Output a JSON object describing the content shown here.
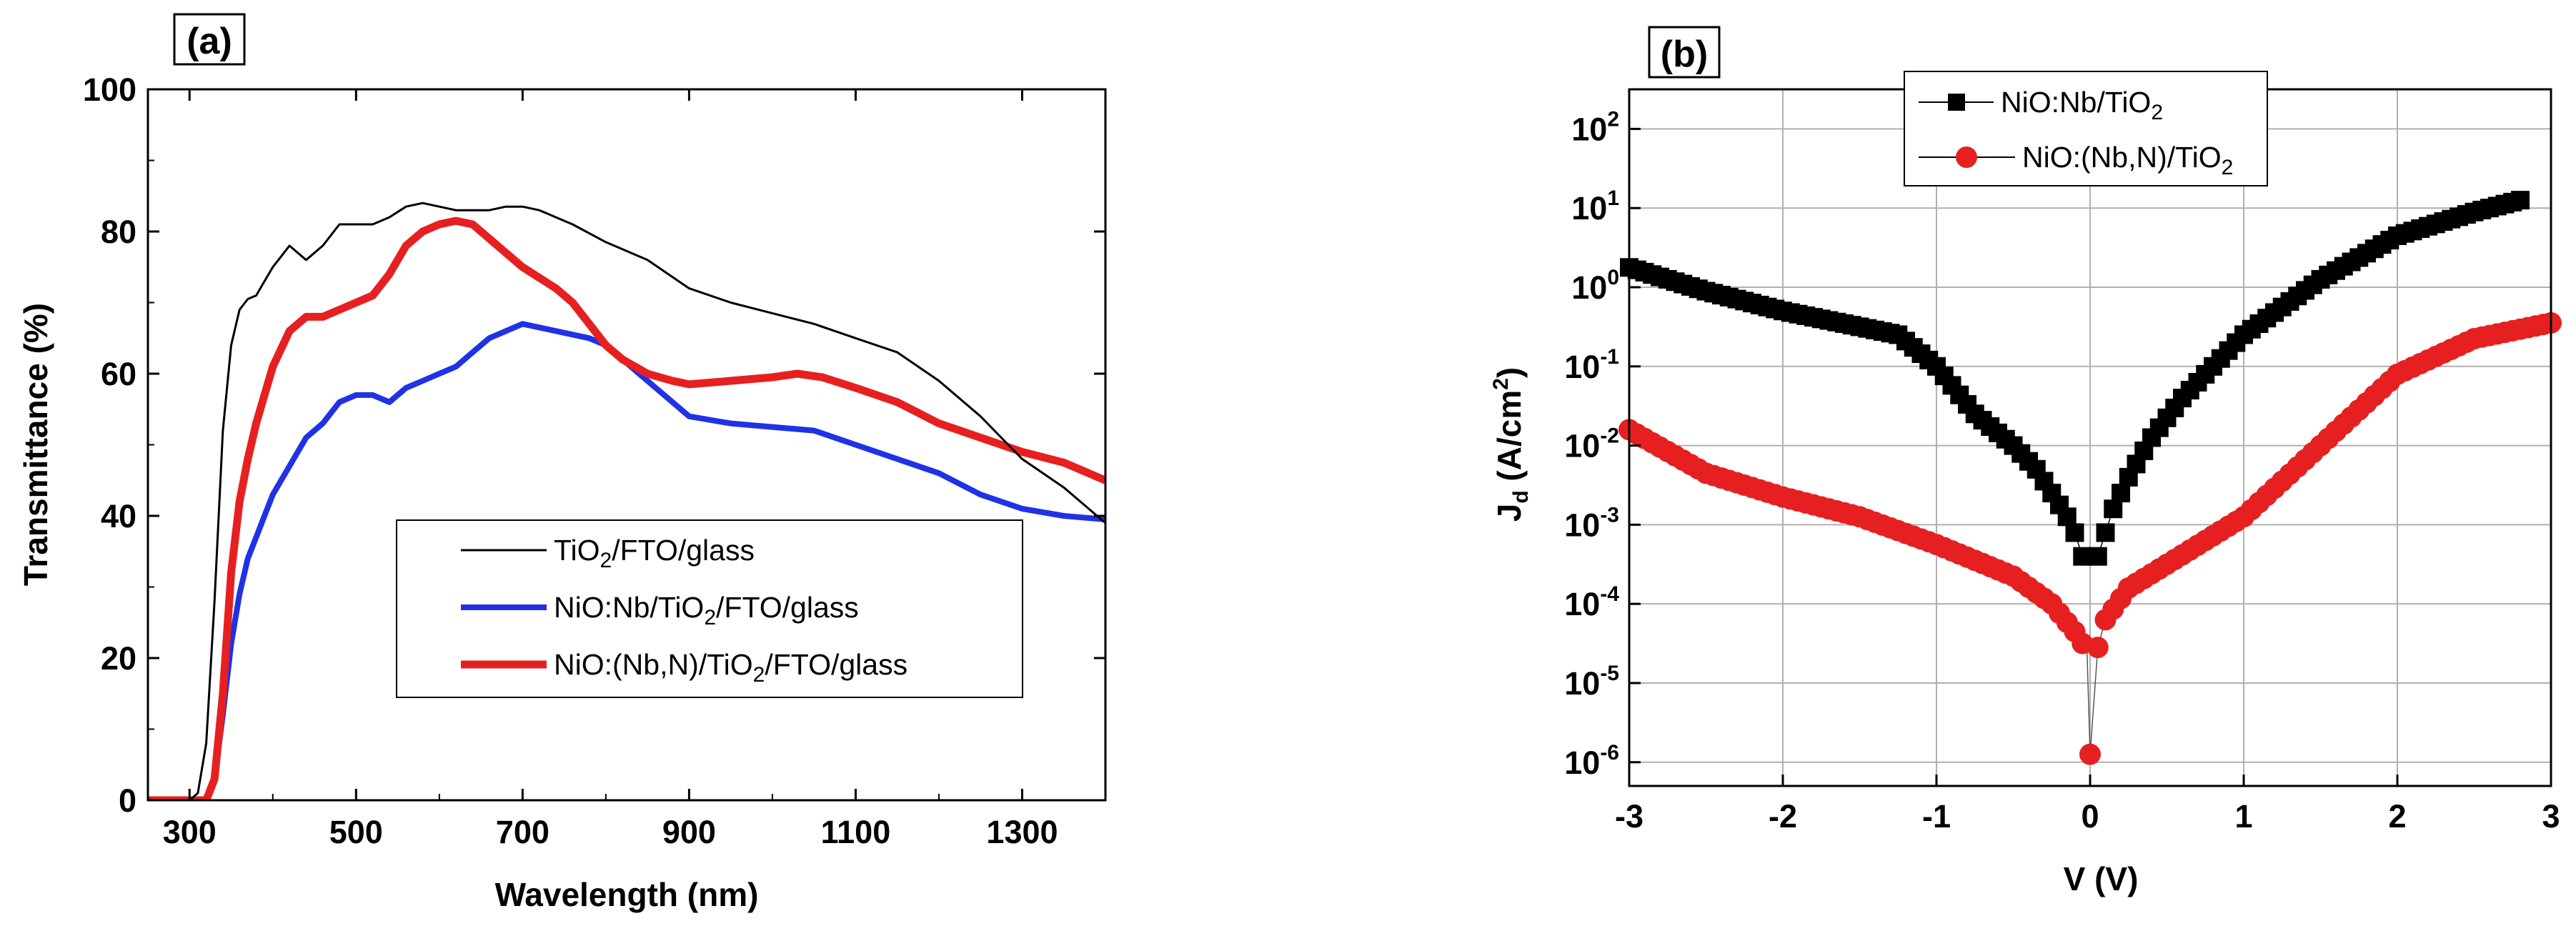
{
  "chart_data": [
    {
      "panel_label": "(a)",
      "type": "line",
      "xlabel": "Wavelength  (nm)",
      "ylabel": "Transmittance  (%)",
      "xlim": [
        250,
        1400
      ],
      "ylim": [
        0,
        100
      ],
      "x_ticks": [
        "300",
        "500",
        "700",
        "900",
        "1100",
        "1300"
      ],
      "y_ticks": [
        "0",
        "20",
        "40",
        "60",
        "80",
        "100"
      ],
      "legend": {
        "placement": "lower-right",
        "entries": [
          {
            "pre": "TiO",
            "sub": "2",
            "post": "/FTO/glass"
          },
          {
            "pre": "NiO:Nb/TiO",
            "sub": "2",
            "post": "/FTO/glass"
          },
          {
            "pre": "NiO:(Nb,N)/TiO",
            "sub": "2",
            "post": "/FTO/glass"
          }
        ]
      },
      "series": [
        {
          "name": "TiO2/FTO/glass",
          "color": "#000000",
          "x": [
            250,
            300,
            310,
            320,
            330,
            340,
            350,
            360,
            370,
            380,
            390,
            400,
            420,
            440,
            460,
            480,
            500,
            520,
            540,
            560,
            580,
            600,
            620,
            640,
            660,
            680,
            700,
            720,
            740,
            760,
            800,
            850,
            900,
            950,
            1000,
            1050,
            1100,
            1150,
            1200,
            1250,
            1300,
            1350,
            1400
          ],
          "y": [
            0,
            0,
            1,
            8,
            28,
            52,
            64,
            69,
            70.5,
            71,
            73,
            75,
            78,
            76,
            78,
            81,
            81,
            81,
            82,
            83.5,
            84,
            83.5,
            83,
            83,
            83,
            83.5,
            83.5,
            83,
            82,
            81,
            78.5,
            76,
            72,
            70,
            68.5,
            67,
            65,
            63,
            59,
            54,
            48,
            44,
            39
          ]
        },
        {
          "name": "NiO:Nb/TiO2/FTO/glass",
          "color": "#1f32e6",
          "x": [
            250,
            320,
            330,
            340,
            350,
            360,
            370,
            380,
            390,
            400,
            420,
            440,
            460,
            480,
            500,
            520,
            540,
            560,
            580,
            600,
            620,
            640,
            660,
            680,
            700,
            720,
            740,
            760,
            780,
            800,
            820,
            850,
            880,
            900,
            950,
            1000,
            1050,
            1100,
            1150,
            1200,
            1250,
            1300,
            1350,
            1400
          ],
          "y": [
            0,
            0,
            3,
            12,
            22,
            29,
            34,
            37,
            40,
            43,
            47,
            51,
            53,
            56,
            57,
            57,
            56,
            58,
            59,
            60,
            61,
            63,
            65,
            66,
            67,
            66.5,
            66,
            65.5,
            65,
            64,
            62,
            59,
            56,
            54,
            53,
            52.5,
            52,
            50,
            48,
            46,
            43,
            41,
            40,
            39.5
          ]
        },
        {
          "name": "NiO:(Nb,N)/TiO2/FTO/glass",
          "color": "#e62020",
          "x": [
            250,
            320,
            330,
            340,
            350,
            360,
            370,
            380,
            390,
            400,
            420,
            440,
            460,
            480,
            500,
            520,
            540,
            560,
            580,
            600,
            620,
            640,
            660,
            680,
            700,
            720,
            740,
            760,
            780,
            800,
            820,
            850,
            880,
            900,
            950,
            1000,
            1030,
            1060,
            1100,
            1150,
            1200,
            1250,
            1300,
            1350,
            1400
          ],
          "y": [
            0,
            0,
            3,
            15,
            32,
            42,
            48,
            53,
            57,
            61,
            66,
            68,
            68,
            69,
            70,
            71,
            74,
            78,
            80,
            81,
            81.5,
            81,
            79,
            77,
            75,
            73.5,
            72,
            70,
            67,
            64,
            62,
            60,
            59,
            58.5,
            59,
            59.5,
            60,
            59.5,
            58,
            56,
            53,
            51,
            49,
            47.5,
            45
          ]
        }
      ]
    },
    {
      "panel_label": "(b)",
      "type": "scatter",
      "xlabel": "V (V)",
      "ylabel_pre": "J",
      "ylabel_sub": "d",
      "ylabel_mid": "  (A/cm",
      "ylabel_sup": "2",
      "ylabel_post": ")",
      "y_scale": "log",
      "xlim": [
        -3,
        3
      ],
      "ylim_log10": [
        -6.3,
        2.5
      ],
      "x_ticks": [
        "-3",
        "-2",
        "-1",
        "0",
        "1",
        "2",
        "3"
      ],
      "y_ticks": [
        {
          "base": "10",
          "exp": "-6",
          "log": -6
        },
        {
          "base": "10",
          "exp": "-5",
          "log": -5
        },
        {
          "base": "10",
          "exp": "-4",
          "log": -4
        },
        {
          "base": "10",
          "exp": "-3",
          "log": -3
        },
        {
          "base": "10",
          "exp": "-2",
          "log": -2
        },
        {
          "base": "10",
          "exp": "-1",
          "log": -1
        },
        {
          "base": "10",
          "exp": "0",
          "log": 0
        },
        {
          "base": "10",
          "exp": "1",
          "log": 1
        },
        {
          "base": "10",
          "exp": "2",
          "log": 2
        }
      ],
      "grid": true,
      "legend": {
        "placement": "top-center",
        "entries": [
          {
            "pre": "NiO:Nb/TiO",
            "sub": "2",
            "post": ""
          },
          {
            "pre": " NiO:(Nb,N)/TiO",
            "sub": "2",
            "post": ""
          }
        ]
      },
      "series": [
        {
          "name": "NiO:Nb/TiO2",
          "color": "#000000",
          "marker": "square",
          "V": [
            -3.0,
            -2.5,
            -2.0,
            -1.5,
            -1.25,
            -1.0,
            -0.75,
            -0.5,
            -0.35,
            -0.25,
            -0.15,
            -0.1,
            -0.05,
            0.05,
            0.1,
            0.15,
            0.25,
            0.4,
            0.6,
            1.0,
            1.5,
            2.0,
            2.5,
            2.8
          ],
          "log10J": [
            0.25,
            -0.05,
            -0.3,
            -0.5,
            -0.6,
            -1.0,
            -1.6,
            -2.0,
            -2.3,
            -2.6,
            -2.9,
            -3.1,
            -3.4,
            -3.4,
            -3.1,
            -2.8,
            -2.4,
            -1.9,
            -1.4,
            -0.6,
            0.1,
            0.65,
            0.95,
            1.1
          ]
        },
        {
          "name": "NiO:(Nb,N)/TiO2",
          "color": "#e62020",
          "marker": "circle",
          "V": [
            -3.0,
            -2.5,
            -2.0,
            -1.5,
            -1.0,
            -0.5,
            -0.25,
            -0.1,
            -0.05,
            -0.02,
            0.0,
            0.05,
            0.1,
            0.25,
            0.5,
            1.0,
            1.5,
            2.0,
            2.5,
            3.0
          ],
          "log10J": [
            -1.8,
            -2.35,
            -2.65,
            -2.9,
            -3.25,
            -3.65,
            -4.0,
            -4.35,
            -4.5,
            -4.6,
            -5.9,
            -4.55,
            -4.2,
            -3.8,
            -3.5,
            -2.9,
            -2.0,
            -1.1,
            -0.65,
            -0.45
          ]
        }
      ]
    }
  ]
}
